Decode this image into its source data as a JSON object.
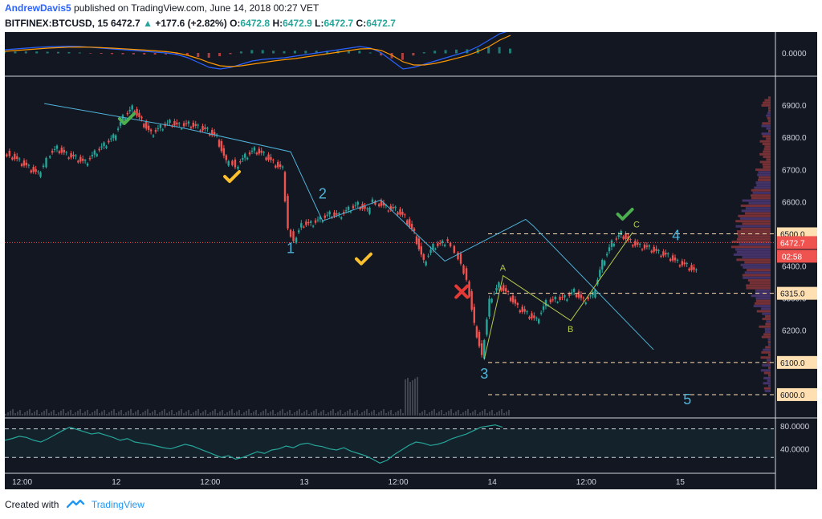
{
  "header": {
    "author": "AndrewDavis5",
    "published_text": "published on TradingView.com, June 14, 2018 00:27 VET",
    "symbol": "BITFINEX:BTCUSD, 15",
    "last": "6472.7",
    "change_arrow": "▲",
    "change": "+177.6 (+2.82%)",
    "o_label": "O:",
    "o_value": "6472.8",
    "h_label": "H:",
    "h_value": "6472.9",
    "l_label": "L:",
    "l_value": "6472.7",
    "c_label": "C:",
    "c_value": "6472.7"
  },
  "footer": {
    "created_with": "Created with",
    "brand": "TradingView"
  },
  "colors": {
    "background": "#131722",
    "up": "#26a69a",
    "down": "#ef5350",
    "wave_line": "#4fb3d9",
    "abc_line": "#b5c94b",
    "check_green": "#4caf50",
    "check_yellow": "#fbc02d",
    "cross_red": "#e53935",
    "price_badge": "#ef5350",
    "level_badge": "#ffe0b2"
  },
  "icons": {
    "check": "check-icon",
    "cross": "cross-icon",
    "logo": "tradingview-logo-icon"
  },
  "chart_data": [
    {
      "type": "line",
      "panel": "macd",
      "y_tick_labels": [
        "0.0000"
      ],
      "series": [
        {
          "values": [
            0.2,
            0.25,
            0.3,
            0.35,
            0.38,
            0.4,
            0.42,
            0.4,
            0.35,
            0.3,
            0.25,
            0.2,
            0.15,
            0.1,
            0.05,
            0.0,
            -0.1,
            -0.3,
            -0.6,
            -0.9,
            -1.0,
            -0.9,
            -0.7,
            -0.5,
            -0.4,
            -0.35,
            -0.3,
            -0.2,
            -0.1,
            0.0,
            0.1,
            0.2,
            0.3,
            0.4,
            0.3,
            0.0,
            -0.5,
            -1.0,
            -0.9,
            -0.7,
            -0.5,
            -0.3,
            -0.1,
            0.1,
            0.4,
            0.8,
            1.2,
            1.4
          ]
        },
        {
          "values": [
            0.1,
            0.15,
            0.2,
            0.25,
            0.3,
            0.33,
            0.36,
            0.37,
            0.36,
            0.33,
            0.3,
            0.26,
            0.22,
            0.18,
            0.13,
            0.08,
            0.0,
            -0.15,
            -0.35,
            -0.6,
            -0.8,
            -0.85,
            -0.8,
            -0.7,
            -0.6,
            -0.5,
            -0.42,
            -0.35,
            -0.25,
            -0.15,
            -0.05,
            0.05,
            0.15,
            0.25,
            0.27,
            0.15,
            -0.15,
            -0.55,
            -0.75,
            -0.75,
            -0.65,
            -0.5,
            -0.33,
            -0.15,
            0.1,
            0.4,
            0.8,
            1.1
          ]
        }
      ]
    },
    {
      "type": "line",
      "panel": "price",
      "title": "BITFINEX:BTCUSD, 15",
      "x_tick_labels": [
        "12:00",
        "12",
        "12:00",
        "13",
        "12:00",
        "14",
        "12:00",
        "15"
      ],
      "y_tick_labels": [
        "6900.0",
        "6800.0",
        "6700.0",
        "6600.0",
        "6500.0",
        "6400.0",
        "6300.0",
        "6200.0",
        "6100.0",
        "6000.0"
      ],
      "ylim": [
        5935,
        6990
      ],
      "x_domain_days": [
        11.41,
        15.5
      ],
      "series": [
        {
          "x": [
            11.42,
            11.45,
            11.5,
            11.55,
            11.6,
            11.63,
            11.65,
            11.7,
            11.75,
            11.8,
            11.85,
            11.9,
            11.95,
            12.0,
            12.05,
            12.1,
            12.15,
            12.2,
            12.25,
            12.3,
            12.35,
            12.4,
            12.45,
            12.5,
            12.55,
            12.6,
            12.62,
            12.65,
            12.7,
            12.75,
            12.8,
            12.85,
            12.9,
            12.93,
            12.96,
            13.0,
            13.05,
            13.1,
            13.15,
            13.2,
            13.25,
            13.3,
            13.35,
            13.38,
            13.4,
            13.45,
            13.5,
            13.55,
            13.6,
            13.65,
            13.7,
            13.75,
            13.78,
            13.8,
            13.82,
            13.85,
            13.88,
            13.92,
            13.96,
            14.0,
            14.05,
            14.1,
            14.15,
            14.2,
            14.25,
            14.3,
            14.35,
            14.4,
            14.45,
            14.5,
            14.55,
            14.6,
            14.65,
            14.7,
            14.75,
            14.8,
            14.85,
            14.9,
            14.95,
            15.0,
            15.05,
            15.1
          ],
          "values": [
            6755,
            6745,
            6725,
            6705,
            6685,
            6715,
            6745,
            6765,
            6745,
            6735,
            6720,
            6750,
            6775,
            6800,
            6860,
            6890,
            6850,
            6810,
            6830,
            6845,
            6835,
            6840,
            6830,
            6820,
            6800,
            6720,
            6735,
            6710,
            6740,
            6760,
            6745,
            6720,
            6700,
            6520,
            6480,
            6530,
            6530,
            6545,
            6560,
            6555,
            6575,
            6590,
            6570,
            6610,
            6600,
            6580,
            6575,
            6550,
            6500,
            6410,
            6460,
            6470,
            6480,
            6470,
            6450,
            6410,
            6360,
            6220,
            6120,
            6295,
            6340,
            6310,
            6270,
            6250,
            6230,
            6285,
            6295,
            6300,
            6320,
            6290,
            6310,
            6410,
            6470,
            6500,
            6472.7,
            6460,
            6455,
            6440,
            6430,
            6410,
            6400,
            6380
          ]
        },
        {
          "name": "",
          "x": [
            11.62,
            12.35,
            12.93,
            13.1,
            13.41,
            13.75,
            14.18,
            14.22,
            14.86
          ],
          "values": [
            6905,
            6830,
            6755,
            6540,
            6605,
            6415,
            6545,
            6525,
            6140
          ]
        }
      ],
      "current_price": {
        "value": 6472.7,
        "label": "6472.7",
        "countdown": "02:58"
      },
      "levels": [
        {
          "value": 6500.0,
          "label": "6500.0"
        },
        {
          "value": 6315.0,
          "label": "6315.0"
        },
        {
          "value": 6100.0,
          "label": "6100.0"
        },
        {
          "value": 6000.0,
          "label": "6000.0"
        }
      ],
      "annotations": {
        "wave_labels": [
          "1",
          "2",
          "3",
          "4",
          "5"
        ],
        "abc_labels": [
          "A",
          "B",
          "C"
        ]
      }
    },
    {
      "type": "line",
      "panel": "oscillator",
      "y_tick_labels": [
        "80.0000",
        "40.0000"
      ],
      "ylim": [
        0,
        90
      ],
      "bands": [
        75,
        25
      ],
      "series": [
        {
          "values": [
            55,
            58,
            62,
            60,
            55,
            52,
            58,
            65,
            72,
            78,
            74,
            70,
            66,
            68,
            64,
            60,
            55,
            58,
            52,
            50,
            48,
            45,
            42,
            40,
            44,
            48,
            45,
            40,
            35,
            30,
            25,
            28,
            22,
            25,
            30,
            35,
            32,
            38,
            40,
            45,
            42,
            48,
            50,
            46,
            44,
            40,
            38,
            42,
            36,
            32,
            28,
            22,
            15,
            20,
            30,
            38,
            46,
            52,
            50,
            46,
            48,
            52,
            58,
            62,
            66,
            72,
            78,
            80,
            82,
            78
          ]
        }
      ]
    }
  ]
}
